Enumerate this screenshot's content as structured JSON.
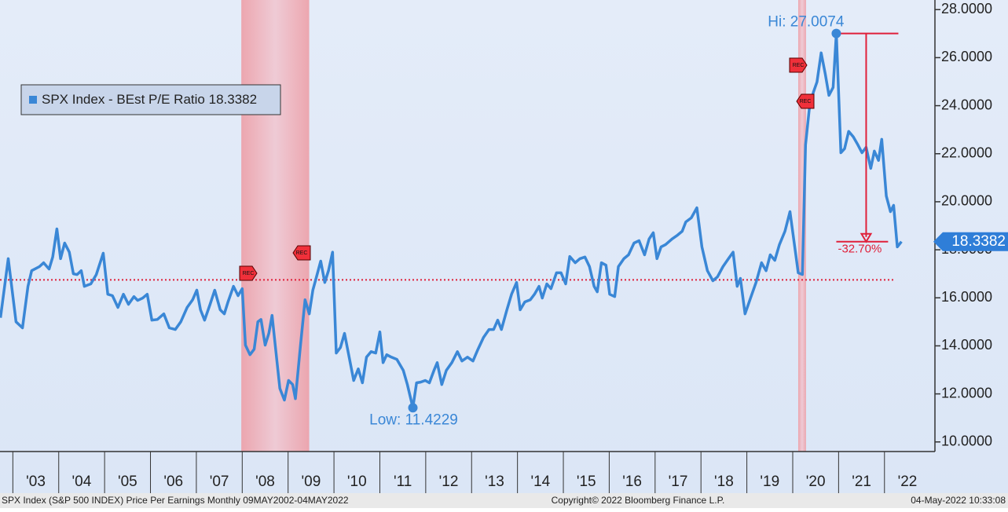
{
  "chart_data": {
    "type": "line",
    "series": [
      {
        "name": "SPX Index - BEst P/E Ratio",
        "color": "#3a87d6",
        "x": [
          2002.73,
          2002.9,
          2003.07,
          2003.21,
          2003.33,
          2003.41,
          2003.58,
          2003.67,
          2003.79,
          2003.87,
          2003.96,
          2004.04,
          2004.13,
          2004.23,
          2004.32,
          2004.4,
          2004.49,
          2004.56,
          2004.7,
          2004.82,
          2004.97,
          2005.07,
          2005.17,
          2005.29,
          2005.41,
          2005.52,
          2005.64,
          2005.72,
          2005.83,
          2005.93,
          2006.03,
          2006.15,
          2006.29,
          2006.41,
          2006.54,
          2006.66,
          2006.8,
          2006.92,
          2007.01,
          2007.09,
          2007.18,
          2007.3,
          2007.4,
          2007.52,
          2007.61,
          2007.69,
          2007.81,
          2007.91,
          2008.0,
          2008.07,
          2008.17,
          2008.26,
          2008.34,
          2008.41,
          2008.5,
          2008.58,
          2008.65,
          2008.72,
          2008.82,
          2008.92,
          2009.01,
          2009.1,
          2009.16,
          2009.27,
          2009.37,
          2009.46,
          2009.54,
          2009.61,
          2009.71,
          2009.8,
          2009.88,
          2009.97,
          2010.05,
          2010.14,
          2010.23,
          2010.33,
          2010.43,
          2010.53,
          2010.62,
          2010.71,
          2010.81,
          2010.91,
          2011.0,
          2011.07,
          2011.15,
          2011.25,
          2011.37,
          2011.51,
          2011.6,
          2011.72,
          2011.8,
          2011.89,
          2011.99,
          2012.08,
          2012.18,
          2012.25,
          2012.35,
          2012.45,
          2012.57,
          2012.69,
          2012.79,
          2012.91,
          2013.03,
          2013.14,
          2013.26,
          2013.38,
          2013.48,
          2013.57,
          2013.65,
          2013.77,
          2013.87,
          2013.98,
          2014.06,
          2014.16,
          2014.28,
          2014.37,
          2014.47,
          2014.54,
          2014.64,
          2014.73,
          2014.85,
          2014.95,
          2015.05,
          2015.14,
          2015.26,
          2015.36,
          2015.47,
          2015.57,
          2015.67,
          2015.74,
          2015.83,
          2015.93,
          2016.01,
          2016.12,
          2016.2,
          2016.32,
          2016.42,
          2016.54,
          2016.65,
          2016.77,
          2016.87,
          2016.96,
          2017.04,
          2017.13,
          2017.23,
          2017.37,
          2017.49,
          2017.59,
          2017.67,
          2017.79,
          2017.91,
          2018.02,
          2018.14,
          2018.26,
          2018.36,
          2018.48,
          2018.6,
          2018.7,
          2018.79,
          2018.86,
          2018.96,
          2019.08,
          2019.2,
          2019.32,
          2019.42,
          2019.51,
          2019.61,
          2019.71,
          2019.83,
          2019.94,
          2020.02,
          2020.12,
          2020.21,
          2020.28,
          2020.36,
          2020.45,
          2020.53,
          2020.62,
          2020.71,
          2020.79,
          2020.88,
          2020.95,
          2021.05,
          2021.13,
          2021.22,
          2021.32,
          2021.42,
          2021.51,
          2021.6,
          2021.7,
          2021.78,
          2021.87,
          2021.94,
          2022.04,
          2022.13,
          2022.2,
          2022.28,
          2022.37
        ],
        "values": [
          15.17,
          17.63,
          15.0,
          14.75,
          16.48,
          17.13,
          17.3,
          17.46,
          17.2,
          17.7,
          18.87,
          17.63,
          18.28,
          17.9,
          17.0,
          16.97,
          17.13,
          16.48,
          16.58,
          16.97,
          17.86,
          16.15,
          16.09,
          15.6,
          16.15,
          15.73,
          16.05,
          15.89,
          15.99,
          16.15,
          15.07,
          15.1,
          15.33,
          14.75,
          14.68,
          15.0,
          15.6,
          15.92,
          16.32,
          15.5,
          15.07,
          15.73,
          16.32,
          15.5,
          15.33,
          15.83,
          16.48,
          16.09,
          16.38,
          14.03,
          13.63,
          13.86,
          15.0,
          15.1,
          14.03,
          14.52,
          15.27,
          14.03,
          12.23,
          11.74,
          12.56,
          12.39,
          11.8,
          14.03,
          15.92,
          15.33,
          16.32,
          16.81,
          17.53,
          16.64,
          17.13,
          17.9,
          13.7,
          13.93,
          14.52,
          13.53,
          12.56,
          13.04,
          12.46,
          13.53,
          13.76,
          13.7,
          14.58,
          13.3,
          13.63,
          13.53,
          13.44,
          12.98,
          12.39,
          11.4229,
          12.46,
          12.49,
          12.56,
          12.46,
          12.98,
          13.3,
          12.39,
          12.98,
          13.3,
          13.76,
          13.37,
          13.53,
          13.37,
          13.86,
          14.35,
          14.68,
          14.68,
          15.07,
          14.68,
          15.5,
          16.15,
          16.64,
          15.5,
          15.83,
          15.92,
          16.15,
          16.48,
          15.99,
          16.58,
          16.38,
          17.04,
          17.04,
          16.58,
          17.72,
          17.46,
          17.63,
          17.7,
          17.3,
          16.48,
          16.25,
          17.46,
          17.36,
          16.15,
          16.05,
          17.3,
          17.63,
          17.79,
          18.28,
          18.38,
          17.79,
          18.45,
          18.71,
          17.63,
          18.12,
          18.22,
          18.45,
          18.61,
          18.77,
          19.16,
          19.33,
          19.75,
          18.12,
          17.13,
          16.71,
          16.87,
          17.3,
          17.63,
          17.9,
          16.48,
          16.81,
          15.33,
          15.99,
          16.64,
          17.46,
          17.13,
          17.79,
          17.56,
          18.22,
          18.77,
          19.59,
          18.45,
          17.04,
          16.97,
          22.37,
          23.84,
          24.56,
          24.99,
          26.2,
          25.32,
          24.43,
          24.76,
          27.0074,
          22.04,
          22.21,
          22.93,
          22.7,
          22.37,
          22.04,
          22.27,
          21.39,
          22.11,
          21.72,
          22.6,
          20.24,
          19.59,
          19.85,
          18.12,
          18.3382
        ]
      }
    ],
    "xlim": [
      2002.72,
      2023.1
    ],
    "xticks": [
      {
        "value": 2003,
        "label": "'03"
      },
      {
        "value": 2004,
        "label": "'04"
      },
      {
        "value": 2005,
        "label": "'05"
      },
      {
        "value": 2006,
        "label": "'06"
      },
      {
        "value": 2007,
        "label": "'07"
      },
      {
        "value": 2008,
        "label": "'08"
      },
      {
        "value": 2009,
        "label": "'09"
      },
      {
        "value": 2010,
        "label": "'10"
      },
      {
        "value": 2011,
        "label": "'11"
      },
      {
        "value": 2012,
        "label": "'12"
      },
      {
        "value": 2013,
        "label": "'13"
      },
      {
        "value": 2014,
        "label": "'14"
      },
      {
        "value": 2015,
        "label": "'15"
      },
      {
        "value": 2016,
        "label": "'16"
      },
      {
        "value": 2017,
        "label": "'17"
      },
      {
        "value": 2018,
        "label": "'18"
      },
      {
        "value": 2019,
        "label": "'19"
      },
      {
        "value": 2020,
        "label": "'20"
      },
      {
        "value": 2021,
        "label": "'21"
      },
      {
        "value": 2022,
        "label": "'22"
      }
    ],
    "ylim": [
      9.6,
      28.4
    ],
    "yticks": [
      {
        "value": 10,
        "label": "10.0000"
      },
      {
        "value": 12,
        "label": "12.0000"
      },
      {
        "value": 14,
        "label": "14.0000"
      },
      {
        "value": 16,
        "label": "16.0000"
      },
      {
        "value": 18,
        "label": "18.0000"
      },
      {
        "value": 20,
        "label": "20.0000"
      },
      {
        "value": 22,
        "label": "22.0000"
      },
      {
        "value": 24,
        "label": "24.0000"
      },
      {
        "value": 26,
        "label": "26.0000"
      },
      {
        "value": 28,
        "label": "28.0000"
      }
    ],
    "recessions": [
      [
        2007.98,
        2009.46
      ],
      [
        2020.12,
        2020.29
      ]
    ],
    "mean": 16.75,
    "recession_tag": "REC",
    "high_label": "Hi: 27.0074",
    "low_label": "Low: 11.4229",
    "change_label": "-32.70%",
    "footer_left": "SPX Index (S&P 500 INDEX) Price Per Earnings  Monthly 09MAY2002-04MAY2022",
    "footer_center": "Copyright© 2022 Bloomberg Finance L.P.",
    "footer_right": "04-May-2022 10:33:08"
  }
}
